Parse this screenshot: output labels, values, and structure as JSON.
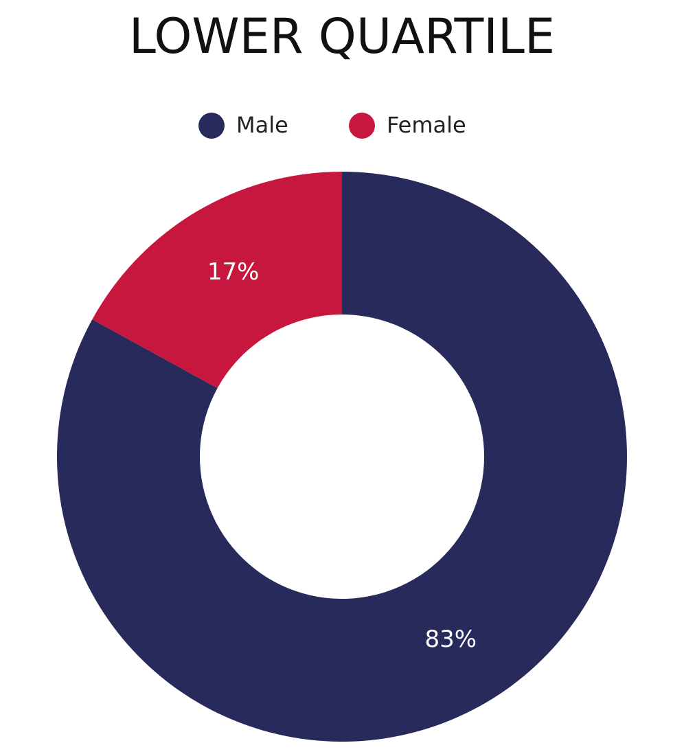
{
  "chart_data": {
    "type": "donut",
    "title": "LOWER QUARTILE",
    "categories": [
      "Male",
      "Female"
    ],
    "values": [
      83,
      17
    ],
    "value_labels": [
      "83%",
      "17%"
    ],
    "colors": [
      "#272a5a",
      "#c8173f"
    ],
    "legend": "top"
  }
}
